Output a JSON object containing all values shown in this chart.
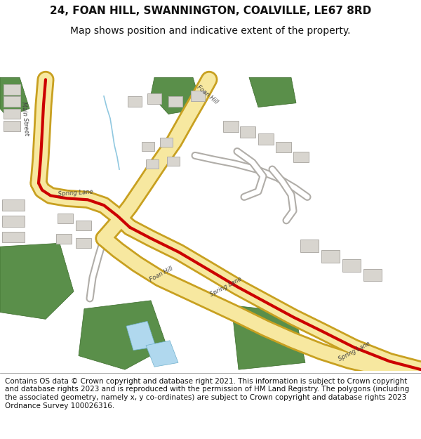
{
  "title_line1": "24, FOAN HILL, SWANNINGTON, COALVILLE, LE67 8RD",
  "title_line2": "Map shows position and indicative extent of the property.",
  "footer_text": "Contains OS data © Crown copyright and database right 2021. This information is subject to Crown copyright and database rights 2023 and is reproduced with the permission of HM Land Registry. The polygons (including the associated geometry, namely x, y co-ordinates) are subject to Crown copyright and database rights 2023 Ordnance Survey 100026316.",
  "bg_color": "#ffffff",
  "map_bg": "#f0ede8",
  "road_yellow": "#f7e8a0",
  "road_border": "#c8a020",
  "road_red": "#cc0000",
  "green_dark": "#5a8f4a",
  "building_color": "#d8d5cf",
  "building_border": "#b0ada8",
  "water_color": "#b0d8ee",
  "title_fontsize": 11,
  "subtitle_fontsize": 10,
  "footer_fontsize": 7.5,
  "fig_width": 6.0,
  "fig_height": 6.25
}
